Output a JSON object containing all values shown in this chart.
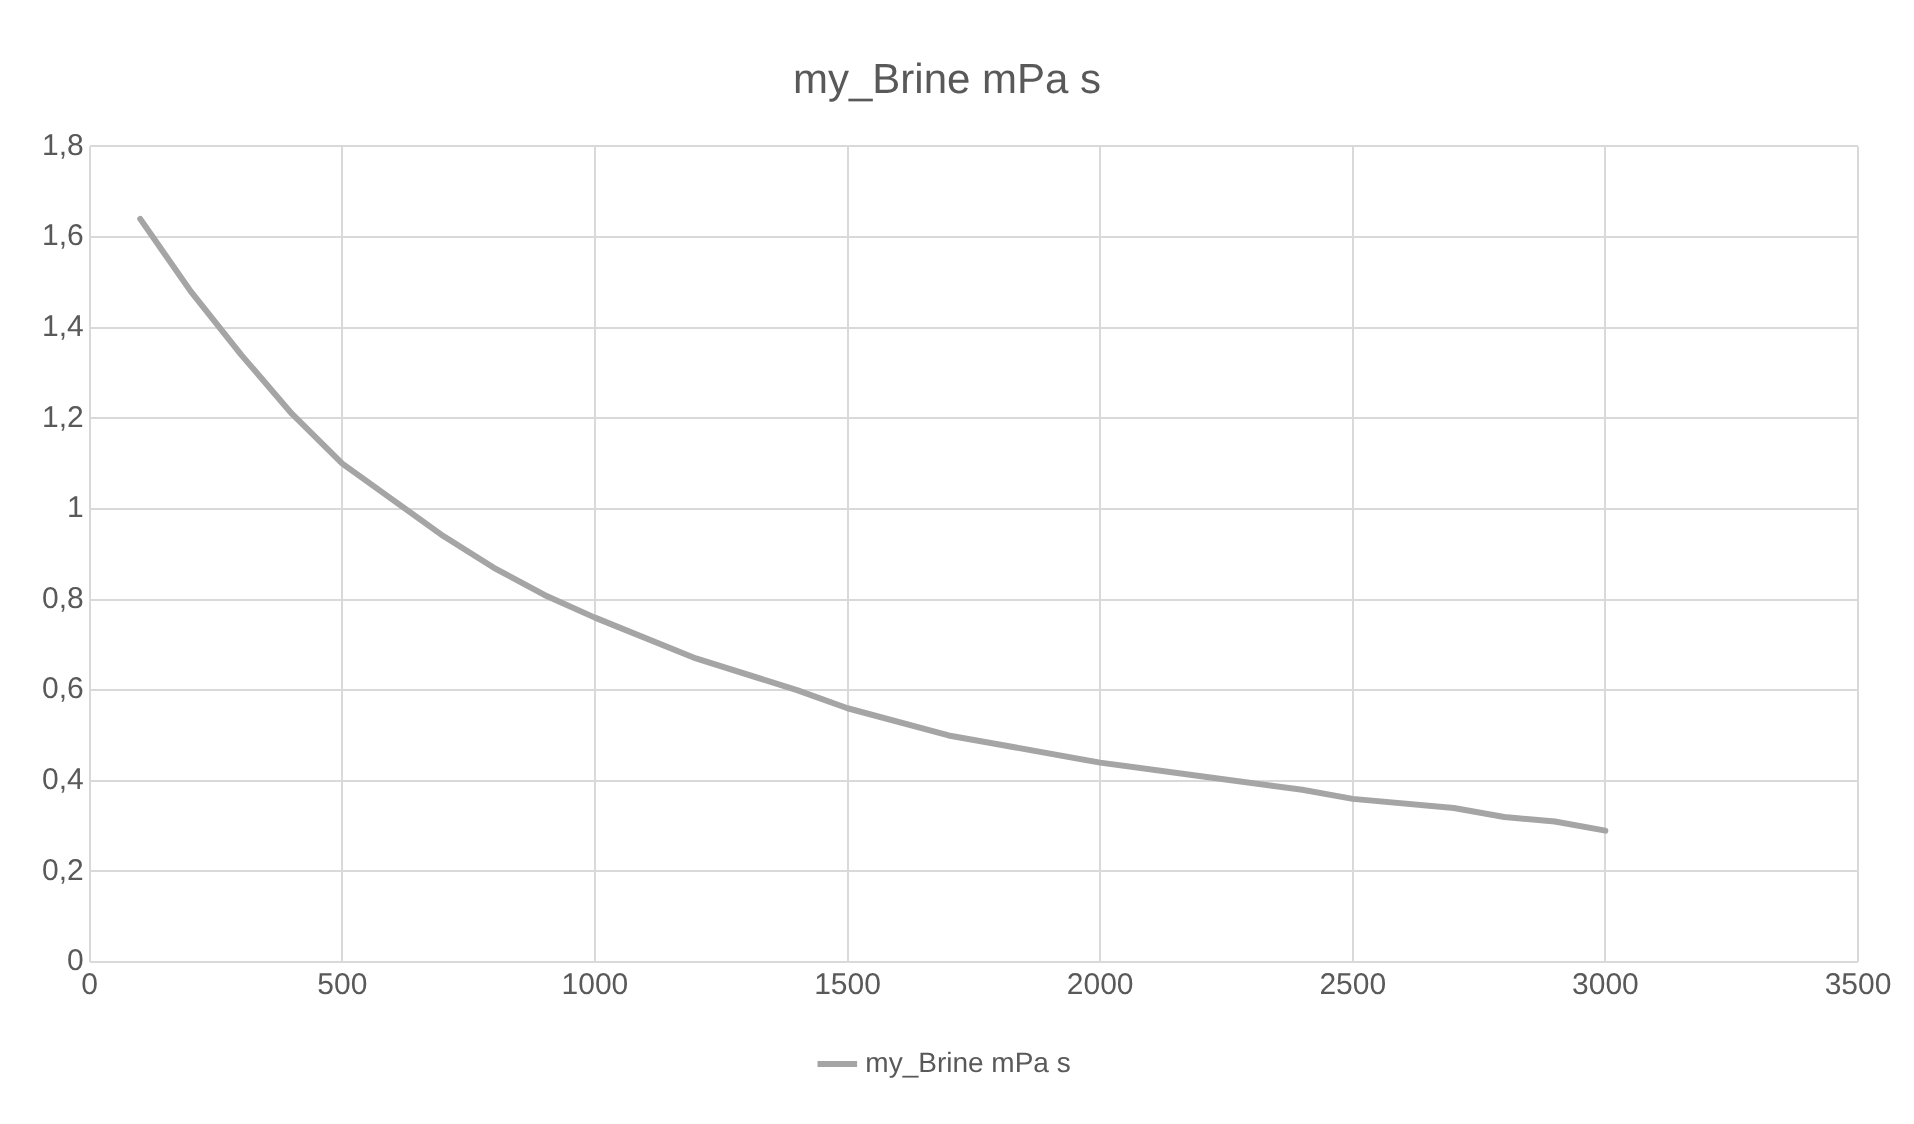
{
  "chart_data": {
    "type": "line",
    "title": "my_Brine mPa s",
    "x": [
      100,
      200,
      300,
      400,
      500,
      600,
      700,
      800,
      900,
      1000,
      1200,
      1400,
      1500,
      1700,
      1800,
      2000,
      2200,
      2400,
      2500,
      2700,
      2800,
      2900,
      3000
    ],
    "series": [
      {
        "name": "my_Brine mPa s",
        "color": "#a5a5a5",
        "values": [
          1.64,
          1.48,
          1.34,
          1.21,
          1.1,
          1.02,
          0.94,
          0.87,
          0.81,
          0.76,
          0.67,
          0.6,
          0.56,
          0.5,
          0.48,
          0.44,
          0.41,
          0.38,
          0.36,
          0.34,
          0.32,
          0.31,
          0.29
        ]
      }
    ],
    "xlim": [
      0,
      3500
    ],
    "xticks": [
      0,
      500,
      1000,
      1500,
      2000,
      2500,
      3000,
      3500
    ],
    "ylim": [
      0,
      1.8
    ],
    "yticks": [
      0,
      {
        "value": 0.2,
        "label": "0,2"
      },
      {
        "value": 0.4,
        "label": "0,4"
      },
      {
        "value": 0.6,
        "label": "0,6"
      },
      {
        "value": 0.8,
        "label": "0,8"
      },
      1,
      {
        "value": 1.2,
        "label": "1,2"
      },
      {
        "value": 1.4,
        "label": "1,4"
      },
      {
        "value": 1.6,
        "label": "1,6"
      },
      {
        "value": 1.8,
        "label": "1,8"
      }
    ],
    "grid": true,
    "legend": "bottom",
    "marker": "none",
    "line_style": "solid"
  }
}
